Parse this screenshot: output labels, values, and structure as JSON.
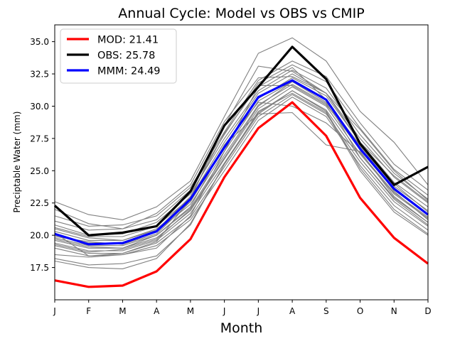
{
  "chart_data": {
    "type": "line",
    "title": "Annual Cycle: Model vs OBS vs CMIP",
    "xlabel": "Month",
    "ylabel": "Preciptable Water (mm)",
    "categories": [
      "J",
      "F",
      "M",
      "A",
      "M",
      "J",
      "J",
      "A",
      "S",
      "O",
      "N",
      "D"
    ],
    "ylim": [
      15.0,
      36.3
    ],
    "yticks": [
      17.5,
      20.0,
      22.5,
      25.0,
      27.5,
      30.0,
      32.5,
      35.0
    ],
    "ytick_labels": [
      "17.5",
      "20.0",
      "22.5",
      "25.0",
      "27.5",
      "30.0",
      "32.5",
      "35.0"
    ],
    "legend_position": "top-left",
    "series": [
      {
        "name": "MOD",
        "label": "MOD: 21.41",
        "color": "#ff0000",
        "width": 3.2,
        "values": [
          16.5,
          16.0,
          16.1,
          17.2,
          19.7,
          24.5,
          28.3,
          30.3,
          27.7,
          22.9,
          19.8,
          17.8
        ]
      },
      {
        "name": "OBS",
        "label": "OBS: 25.78",
        "color": "#000000",
        "width": 3.2,
        "values": [
          22.3,
          20.0,
          20.2,
          20.7,
          23.4,
          28.5,
          31.5,
          34.6,
          32.1,
          27.1,
          23.9,
          25.3
        ]
      },
      {
        "name": "MMM",
        "label": "MMM: 24.49",
        "color": "#0000ff",
        "width": 3.2,
        "values": [
          20.1,
          19.3,
          19.4,
          20.3,
          22.8,
          26.8,
          30.7,
          32.0,
          30.5,
          26.7,
          23.6,
          21.6
        ]
      }
    ],
    "cmip_color": "#808080",
    "cmip_models": [
      [
        22.6,
        21.6,
        21.2,
        22.2,
        24.2,
        29.2,
        34.1,
        35.3,
        33.5,
        29.6,
        27.2,
        23.9
      ],
      [
        21.5,
        20.7,
        20.8,
        21.5,
        23.7,
        28.0,
        32.0,
        33.5,
        32.3,
        28.7,
        25.5,
        23.5
      ],
      [
        21.1,
        20.4,
        20.5,
        21.2,
        23.5,
        27.8,
        31.8,
        33.2,
        31.9,
        28.3,
        25.1,
        23.1
      ],
      [
        20.8,
        20.0,
        20.1,
        21.0,
        23.2,
        27.5,
        31.2,
        32.8,
        31.4,
        27.8,
        24.8,
        22.8
      ],
      [
        20.6,
        19.9,
        19.9,
        20.7,
        22.9,
        27.2,
        31.0,
        32.5,
        31.0,
        27.5,
        24.5,
        22.5
      ],
      [
        20.3,
        19.6,
        19.6,
        20.5,
        22.6,
        26.8,
        30.6,
        32.2,
        30.8,
        27.2,
        24.1,
        22.2
      ],
      [
        20.0,
        19.4,
        19.4,
        20.3,
        22.4,
        26.5,
        30.4,
        31.9,
        30.5,
        26.9,
        23.8,
        21.9
      ],
      [
        19.8,
        19.2,
        19.2,
        20.0,
        22.1,
        26.2,
        30.1,
        31.7,
        30.2,
        26.6,
        23.5,
        21.6
      ],
      [
        19.6,
        19.0,
        19.0,
        19.8,
        21.9,
        25.9,
        29.8,
        31.5,
        30.0,
        26.3,
        23.2,
        21.3
      ],
      [
        19.4,
        18.8,
        18.8,
        19.6,
        21.7,
        25.6,
        29.5,
        31.2,
        29.7,
        26.0,
        22.9,
        21.0
      ],
      [
        19.2,
        18.6,
        18.6,
        19.4,
        21.4,
        25.3,
        29.2,
        30.9,
        29.4,
        25.7,
        22.6,
        20.7
      ],
      [
        19.0,
        18.4,
        18.5,
        19.2,
        21.2,
        25.0,
        28.9,
        30.7,
        29.2,
        25.4,
        22.3,
        20.4
      ],
      [
        18.5,
        18.3,
        18.5,
        19.0,
        21.5,
        26.5,
        31.5,
        33.0,
        30.5,
        26.0,
        22.8,
        20.8
      ],
      [
        18.2,
        17.7,
        17.8,
        18.4,
        20.8,
        25.5,
        29.4,
        31.2,
        29.6,
        25.2,
        22.0,
        20.1
      ],
      [
        18.0,
        17.5,
        17.4,
        18.2,
        20.9,
        25.5,
        29.6,
        31.0,
        29.5,
        25.0,
        21.8,
        20.0
      ],
      [
        20.2,
        18.4,
        18.6,
        19.5,
        22.8,
        28.5,
        33.1,
        32.7,
        31.0,
        27.2,
        24.6,
        22.6
      ],
      [
        19.7,
        19.1,
        19.0,
        20.0,
        22.2,
        27.0,
        29.4,
        29.5,
        27.0,
        26.5,
        23.0,
        21.0
      ],
      [
        20.5,
        19.8,
        19.6,
        20.4,
        23.0,
        27.9,
        31.6,
        31.6,
        30.1,
        27.0,
        24.0,
        21.8
      ],
      [
        22.0,
        20.9,
        20.5,
        21.7,
        23.9,
        28.8,
        32.2,
        32.3,
        31.0,
        28.2,
        25.0,
        22.7
      ],
      [
        19.3,
        18.7,
        18.9,
        19.7,
        22.0,
        26.0,
        30.0,
        31.9,
        30.3,
        27.0,
        23.4,
        21.2
      ],
      [
        19.9,
        19.5,
        19.3,
        20.1,
        22.6,
        27.0,
        30.3,
        30.0,
        28.7,
        26.4,
        23.3,
        21.4
      ]
    ]
  }
}
